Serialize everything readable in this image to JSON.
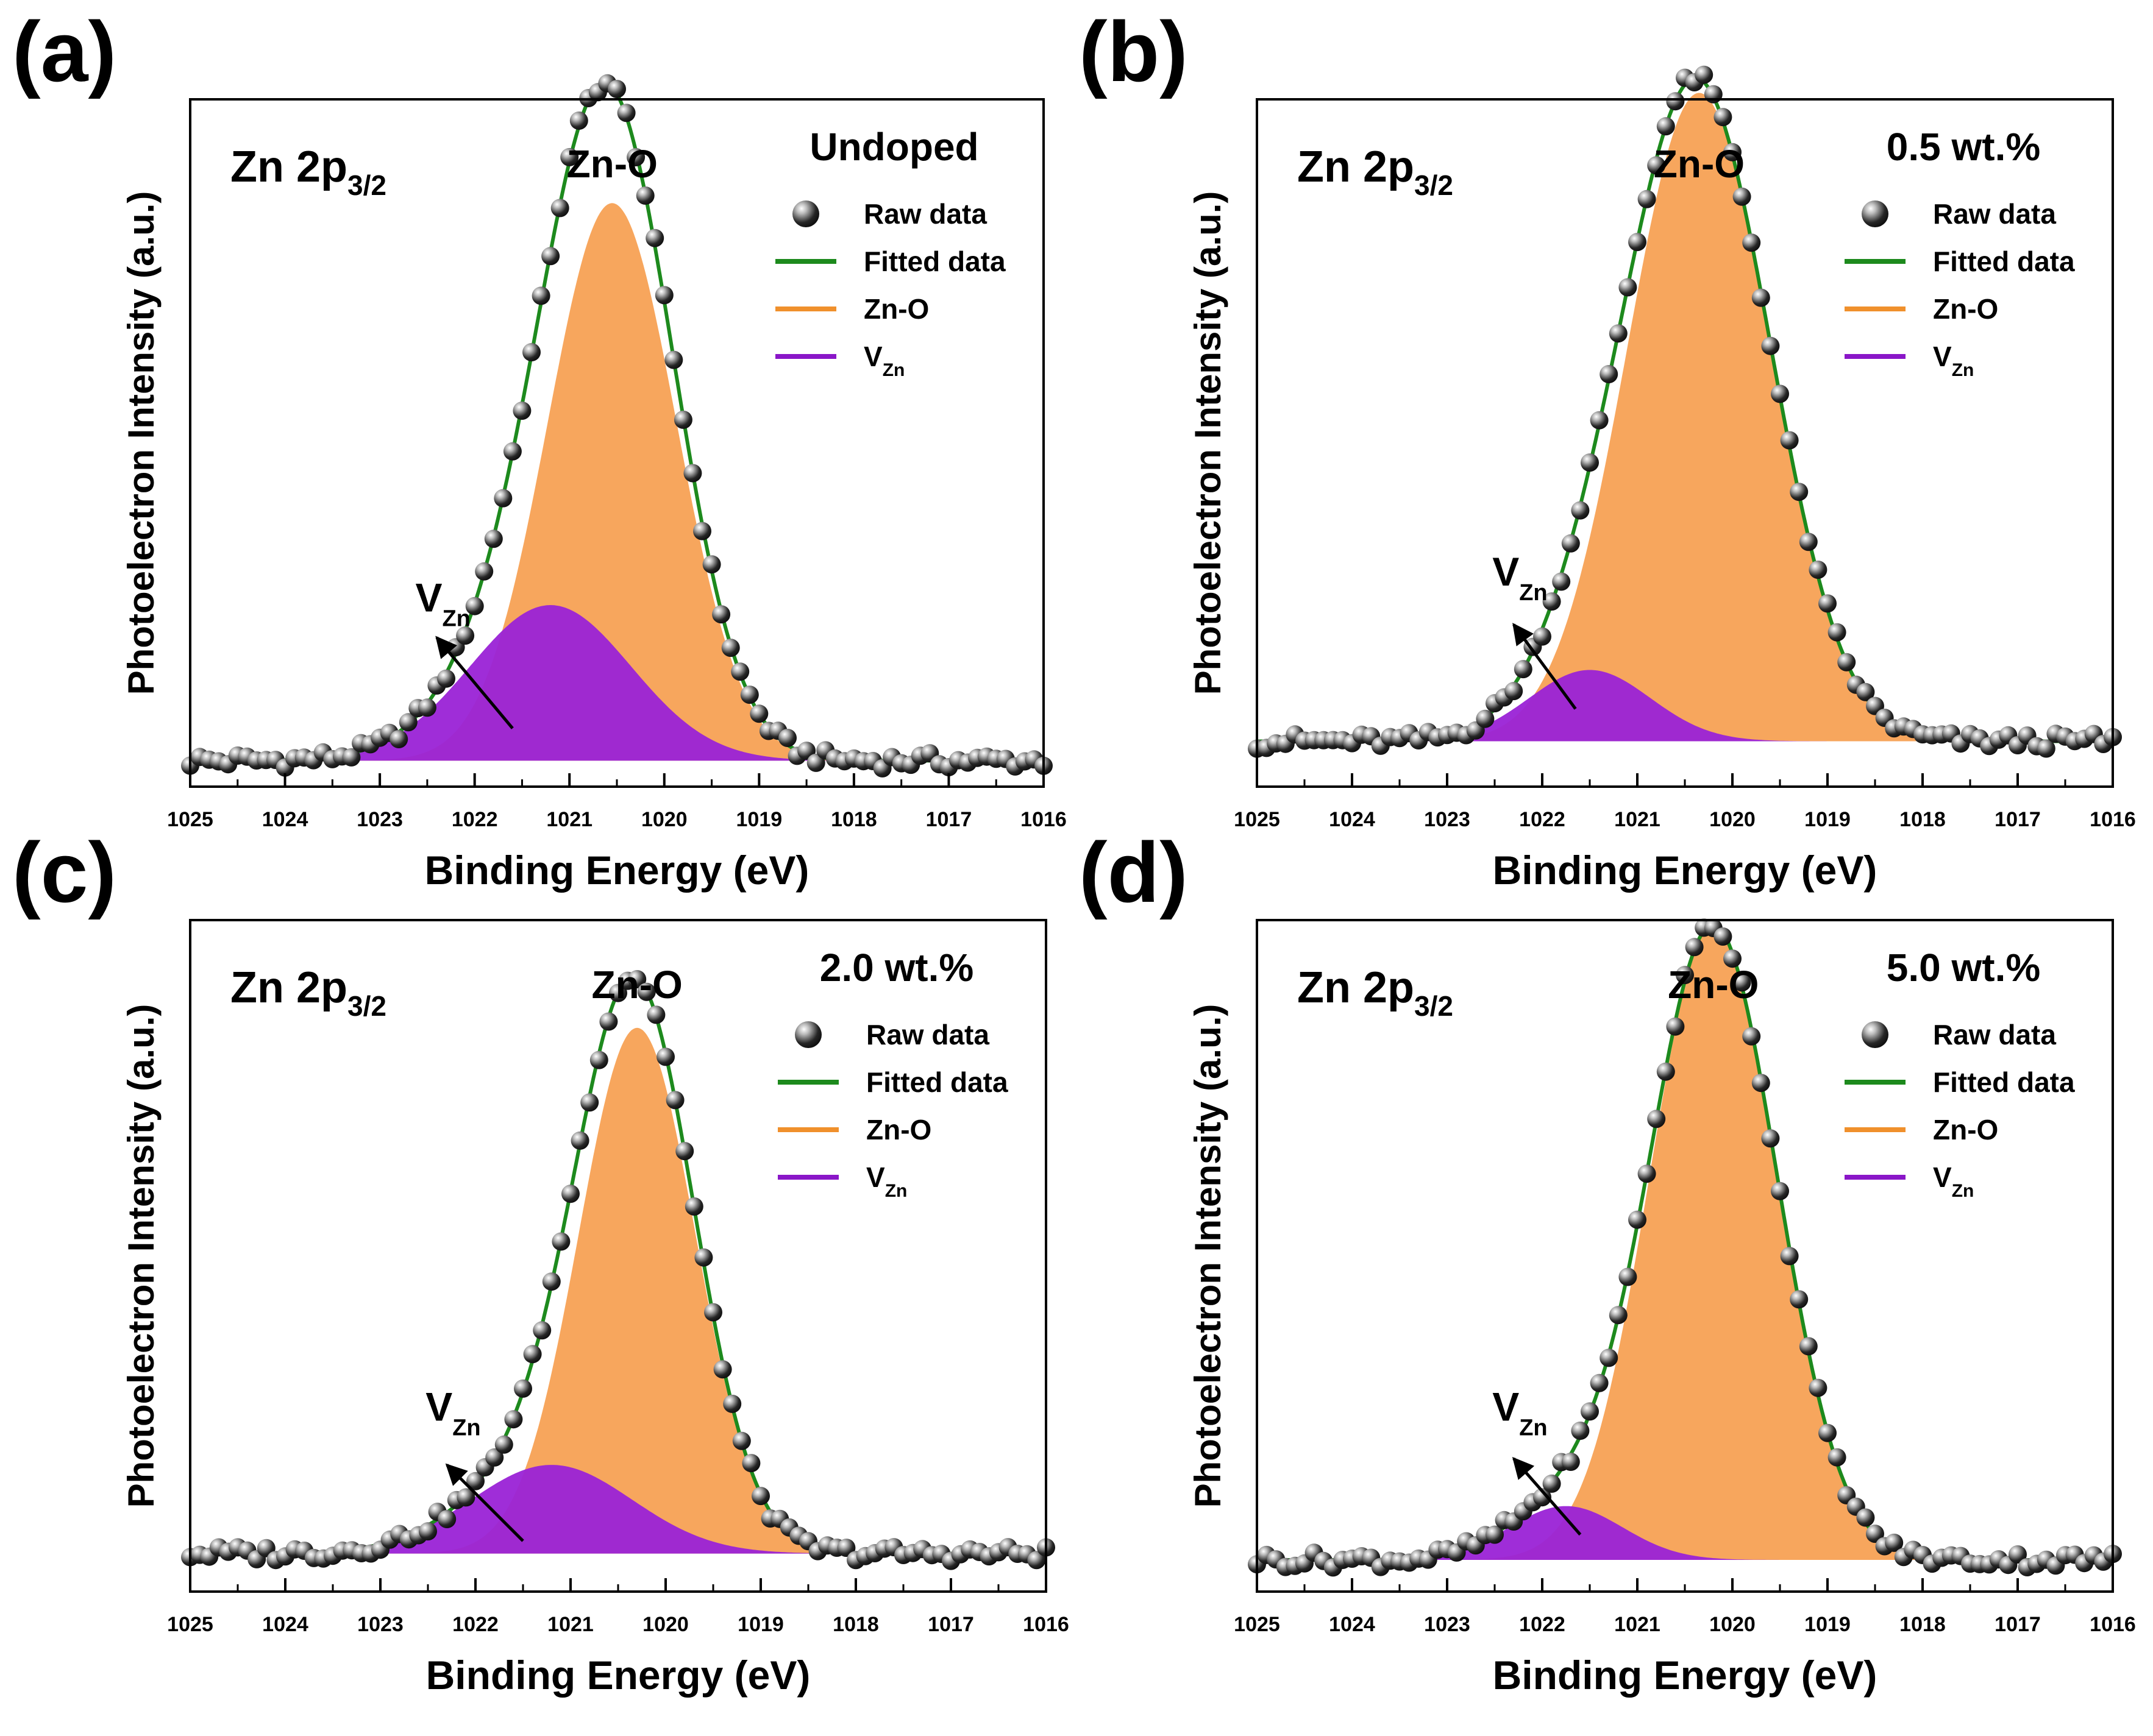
{
  "figure": {
    "sub_label": "Zn",
    "arrow_label": "V"
  },
  "chart_data": [
    {
      "panel_label": "(a)",
      "type": "line",
      "title": "Zn 2p",
      "title_sub": "3/2",
      "peak_label": "Zn-O",
      "sample_label": "Undoped",
      "xlabel": "Binding Energy (eV)",
      "ylabel": "Photoelectron Intensity (a.u.)",
      "xlim": [
        1025,
        1016
      ],
      "ylim": [
        0,
        1.06
      ],
      "x_ticks": [
        "1025",
        "1024",
        "1023",
        "1022",
        "1021",
        "1020",
        "1019",
        "1018",
        "1017",
        "1016"
      ],
      "baseline": 0.04,
      "noise_amplitude": 0.012,
      "legend": [
        "Raw data",
        "Fitted data",
        "Zn-O",
        "V"
      ],
      "legend_position": "top-right",
      "components": [
        {
          "name": "Zn-O",
          "center": 1020.55,
          "height": 0.86,
          "fwhm": 1.6,
          "color": "#f7a65d"
        },
        {
          "name": "V_Zn",
          "center": 1021.2,
          "height": 0.24,
          "fwhm": 2.0,
          "color": "#9a22d6"
        }
      ],
      "arrow": {
        "from": [
          1021.6,
          0.09
        ],
        "to": [
          1022.4,
          0.23
        ]
      },
      "arrow_label_pos": [
        1022.4,
        0.27
      ]
    },
    {
      "panel_label": "(b)",
      "type": "line",
      "title": "Zn 2p",
      "title_sub": "3/2",
      "peak_label": "Zn-O",
      "sample_label": "0.5 wt.%",
      "xlabel": "Binding Energy (eV)",
      "ylabel": "Photoelectron Intensity (a.u.)",
      "xlim": [
        1025,
        1016
      ],
      "ylim": [
        0,
        1.06
      ],
      "x_ticks": [
        "1025",
        "1024",
        "1023",
        "1022",
        "1021",
        "1020",
        "1019",
        "1018",
        "1017",
        "1016"
      ],
      "baseline": 0.07,
      "noise_amplitude": 0.012,
      "legend": [
        "Raw data",
        "Fitted data",
        "Zn-O",
        "V"
      ],
      "legend_position": "top-right",
      "components": [
        {
          "name": "Zn-O",
          "center": 1020.35,
          "height": 1.0,
          "fwhm": 1.78,
          "color": "#f7a65d"
        },
        {
          "name": "V_Zn",
          "center": 1021.5,
          "height": 0.11,
          "fwhm": 1.5,
          "color": "#9a22d6"
        }
      ],
      "arrow": {
        "from": [
          1021.65,
          0.12
        ],
        "to": [
          1022.3,
          0.25
        ]
      },
      "arrow_label_pos": [
        1022.3,
        0.31
      ]
    },
    {
      "panel_label": "(c)",
      "type": "line",
      "title": "Zn 2p",
      "title_sub": "3/2",
      "peak_label": "Zn-O",
      "sample_label": "2.0 wt.%",
      "xlabel": "Binding Energy (eV)",
      "ylabel": "Photoelectron Intensity (a.u.)",
      "xlim": [
        1025,
        1016
      ],
      "ylim": [
        0,
        1.06
      ],
      "x_ticks": [
        "1025",
        "1024",
        "1023",
        "1022",
        "1021",
        "1020",
        "1019",
        "1018",
        "1017",
        "1016"
      ],
      "baseline": 0.06,
      "noise_amplitude": 0.012,
      "legend": [
        "Raw data",
        "Fitted data",
        "Zn-O",
        "V"
      ],
      "legend_position": "top-right",
      "components": [
        {
          "name": "Zn-O",
          "center": 1020.3,
          "height": 0.83,
          "fwhm": 1.45,
          "color": "#f7a65d"
        },
        {
          "name": "V_Zn",
          "center": 1021.2,
          "height": 0.14,
          "fwhm": 2.0,
          "color": "#9a22d6"
        }
      ],
      "arrow": {
        "from": [
          1021.5,
          0.08
        ],
        "to": [
          1022.3,
          0.2
        ]
      },
      "arrow_label_pos": [
        1022.3,
        0.27
      ]
    },
    {
      "panel_label": "(d)",
      "type": "line",
      "title": "Zn 2p",
      "title_sub": "3/2",
      "peak_label": "Zn-O",
      "sample_label": "5.0 wt.%",
      "xlabel": "Binding Energy (eV)",
      "ylabel": "Photoelectron Intensity (a.u.)",
      "xlim": [
        1025,
        1016
      ],
      "ylim": [
        0,
        1.06
      ],
      "x_ticks": [
        "1025",
        "1024",
        "1023",
        "1022",
        "1021",
        "1020",
        "1019",
        "1018",
        "1017",
        "1016"
      ],
      "baseline": 0.05,
      "noise_amplitude": 0.012,
      "legend": [
        "Raw data",
        "Fitted data",
        "Zn-O",
        "V"
      ],
      "legend_position": "top-right",
      "components": [
        {
          "name": "Zn-O",
          "center": 1020.2,
          "height": 1.0,
          "fwhm": 1.58,
          "color": "#f7a65d"
        },
        {
          "name": "V_Zn",
          "center": 1021.75,
          "height": 0.085,
          "fwhm": 1.4,
          "color": "#9a22d6"
        }
      ],
      "arrow": {
        "from": [
          1021.6,
          0.09
        ],
        "to": [
          1022.3,
          0.21
        ]
      },
      "arrow_label_pos": [
        1022.3,
        0.27
      ]
    }
  ],
  "colors": {
    "fit_line": "#1d8a1d",
    "zno_fill": "#f7a65d",
    "zno_legend": "#f0902c",
    "vzn_fill": "#9a22d6",
    "vzn_legend": "#8a16c8",
    "dot_dark": "#1a1a1a",
    "dot_light": "#bdbdbd",
    "axis": "#000000",
    "text": "#000000"
  }
}
